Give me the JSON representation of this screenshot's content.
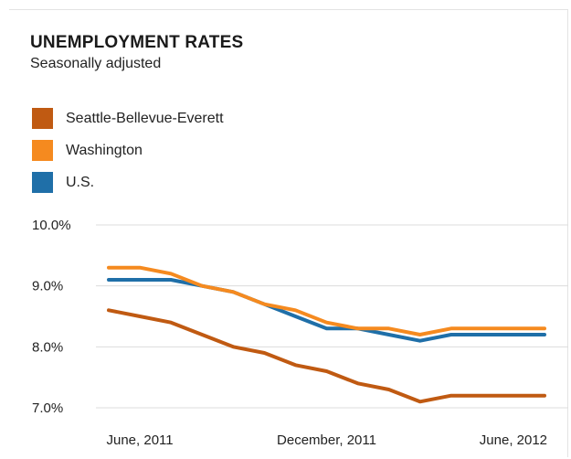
{
  "colors": {
    "Seattle-Bellevue-Everett": "#c05a12",
    "Washington": "#f58a1f",
    "U.S.": "#1f6fa8"
  },
  "chart_data": {
    "type": "line",
    "title": "UNEMPLOYMENT RATES",
    "subtitle": "Seasonally adjusted",
    "x": [
      "2011-05",
      "2011-06",
      "2011-07",
      "2011-08",
      "2011-09",
      "2011-10",
      "2011-11",
      "2011-12",
      "2012-01",
      "2012-02",
      "2012-03",
      "2012-04",
      "2012-05",
      "2012-06",
      "2012-07"
    ],
    "x_tick_labels": [
      "June, 2011",
      "December, 2011",
      "June, 2012"
    ],
    "x_tick_positions": [
      "2011-06",
      "2011-12",
      "2012-06"
    ],
    "y_tick_labels": [
      "10.0%",
      "9.0%",
      "8.0%",
      "7.0%"
    ],
    "y_ticks": [
      10,
      9,
      8,
      7
    ],
    "ylim": [
      7,
      10
    ],
    "grid": true,
    "legend_position": "top-left",
    "series": [
      {
        "name": "Seattle-Bellevue-Everett",
        "values": [
          8.6,
          8.5,
          8.4,
          8.2,
          8.0,
          7.9,
          7.7,
          7.6,
          7.4,
          7.3,
          7.1,
          7.2,
          7.2,
          7.2,
          7.2
        ]
      },
      {
        "name": "Washington",
        "values": [
          9.3,
          9.3,
          9.2,
          9.0,
          8.9,
          8.7,
          8.6,
          8.4,
          8.3,
          8.3,
          8.2,
          8.3,
          8.3,
          8.3,
          8.3
        ]
      },
      {
        "name": "U.S.",
        "values": [
          9.1,
          9.1,
          9.1,
          9.0,
          8.9,
          8.7,
          8.5,
          8.3,
          8.3,
          8.2,
          8.1,
          8.2,
          8.2,
          8.2,
          8.2
        ]
      }
    ]
  }
}
